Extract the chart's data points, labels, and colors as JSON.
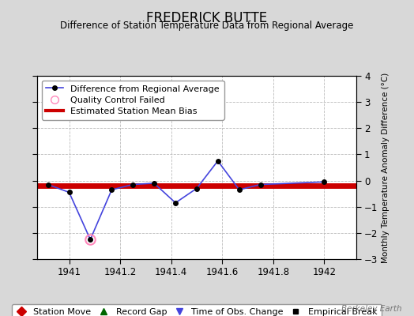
{
  "title": "FREDERICK BUTTE",
  "subtitle": "Difference of Station Temperature Data from Regional Average",
  "ylabel_right": "Monthly Temperature Anomaly Difference (°C)",
  "xlim": [
    1940.875,
    1942.125
  ],
  "ylim": [
    -3,
    4
  ],
  "yticks": [
    -3,
    -2,
    -1,
    0,
    1,
    2,
    3,
    4
  ],
  "xticks": [
    1941,
    1941.2,
    1941.4,
    1941.6,
    1941.8,
    1942
  ],
  "xtick_labels": [
    "1941",
    "1941.2",
    "1941.4",
    "1941.6",
    "1941.8",
    "1942"
  ],
  "background_color": "#d8d8d8",
  "plot_bg_color": "#ffffff",
  "grid_color": "#bbbbbb",
  "watermark": "Berkeley Earth",
  "line_data_x": [
    1940.917,
    1941.0,
    1941.083,
    1941.167,
    1941.25,
    1941.333,
    1941.417,
    1941.5,
    1941.583,
    1941.667,
    1941.75,
    1942.0
  ],
  "line_data_y": [
    -0.15,
    -0.45,
    -2.25,
    -0.35,
    -0.15,
    -0.1,
    -0.85,
    -0.3,
    0.75,
    -0.35,
    -0.15,
    -0.05
  ],
  "line_color": "#4444dd",
  "line_width": 1.2,
  "marker_color": "#000000",
  "marker_size": 4,
  "bias_line_y": -0.18,
  "bias_color": "#cc0000",
  "bias_linewidth": 5,
  "qc_fail_x": [
    1941.083
  ],
  "qc_fail_y": [
    -2.25
  ],
  "qc_marker_color": "#ff88bb",
  "legend1_labels": [
    "Difference from Regional Average",
    "Quality Control Failed",
    "Estimated Station Mean Bias"
  ],
  "legend2_labels": [
    "Station Move",
    "Record Gap",
    "Time of Obs. Change",
    "Empirical Break"
  ],
  "title_fontsize": 12,
  "subtitle_fontsize": 8.5,
  "tick_fontsize": 8.5,
  "legend_fontsize": 8,
  "watermark_fontsize": 7.5
}
